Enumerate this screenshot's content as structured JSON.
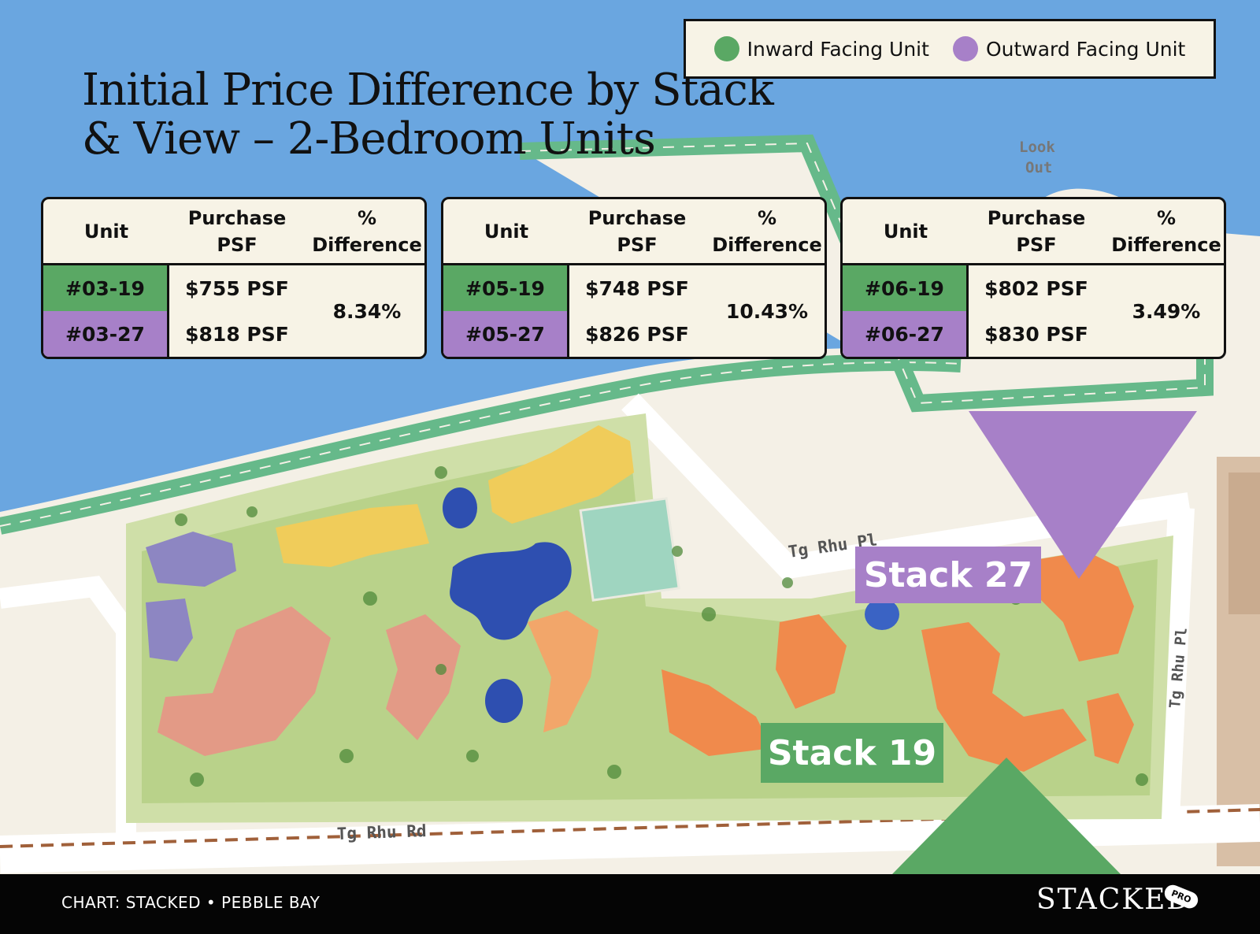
{
  "title": "Initial Price Difference by Stack & View – 2-Bedroom Units",
  "legend": [
    {
      "label": "Inward Facing Unit",
      "color": "#5aa864"
    },
    {
      "label": "Outward Facing Unit",
      "color": "#a780c8"
    }
  ],
  "table_header": {
    "unit": "Unit",
    "psf": "Purchase PSF",
    "pct": "% Difference"
  },
  "tables": [
    {
      "inward_unit": "#03-19",
      "inward_psf": "$755 PSF",
      "outward_unit": "#03-27",
      "outward_psf": "$818 PSF",
      "difference": "8.34%"
    },
    {
      "inward_unit": "#05-19",
      "inward_psf": "$748 PSF",
      "outward_unit": "#05-27",
      "outward_psf": "$826 PSF",
      "difference": "10.43%"
    },
    {
      "inward_unit": "#06-19",
      "inward_psf": "$802 PSF",
      "outward_unit": "#06-27",
      "outward_psf": "$830 PSF",
      "difference": "3.49%"
    }
  ],
  "stacks": {
    "outward": {
      "label": "Stack 27",
      "color": "#a780c8"
    },
    "inward": {
      "label": "Stack 19",
      "color": "#5aa864"
    }
  },
  "map_labels": {
    "road_upper": "Tg Rhu Pl",
    "road_lower": "Tg Rhu Rd",
    "road_right": "Tg Rhu Pl",
    "lookout_1": "Look",
    "lookout_2": "Out"
  },
  "colors": {
    "water": "#6aa6e0",
    "land": "#f4f0e6",
    "path": "#66b98a",
    "footer": "#050505"
  },
  "footer": {
    "credit": "CHART: STACKED • PEBBLE BAY",
    "brand": "STACKED",
    "badge": "PRO"
  }
}
